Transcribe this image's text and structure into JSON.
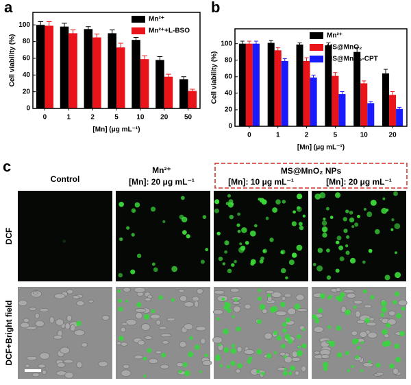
{
  "chart_data": [
    {
      "type": "bar",
      "panel": "a",
      "ylabel": "Cell viability (%)",
      "xlabel": "[Mn]  (μg mL⁻¹)",
      "categories": [
        "0",
        "1",
        "2",
        "5",
        "10",
        "20",
        "50"
      ],
      "series": [
        {
          "name": "Mn²⁺",
          "color": "#000000",
          "values": [
            100,
            98,
            95,
            90,
            82,
            58,
            35
          ],
          "errors": [
            4,
            4,
            3,
            4,
            3,
            4,
            3
          ]
        },
        {
          "name": "Mn²⁺+L-BSO",
          "color": "#e8141a",
          "values": [
            99,
            90,
            85,
            73,
            59,
            38,
            21
          ],
          "errors": [
            5,
            4,
            4,
            5,
            4,
            3,
            2
          ]
        }
      ],
      "ylim": [
        0,
        115
      ],
      "yticks": [
        0,
        20,
        40,
        60,
        80,
        100
      ],
      "legend": "upper right"
    },
    {
      "type": "bar",
      "panel": "b",
      "ylabel": "Cell viability (%)",
      "xlabel": "[Mn]  (μg mL⁻¹)",
      "categories": [
        "0",
        "1",
        "2",
        "5",
        "10",
        "20"
      ],
      "series": [
        {
          "name": "Mn²⁺",
          "color": "#000000",
          "values": [
            100,
            101,
            99,
            98,
            90,
            64
          ],
          "errors": [
            3,
            3,
            2,
            3,
            5,
            5
          ]
        },
        {
          "name": "MS@MnO₂",
          "color": "#e8141a",
          "values": [
            100,
            92,
            79,
            61,
            52,
            38
          ],
          "errors": [
            3,
            3,
            4,
            4,
            3,
            4
          ]
        },
        {
          "name": "MS@MnO₂-CPT",
          "color": "#1a1aff",
          "values": [
            100,
            79,
            59,
            39,
            28,
            21
          ],
          "errors": [
            3,
            3,
            3,
            3,
            2,
            2
          ]
        }
      ],
      "ylim": [
        0,
        118
      ],
      "yticks": [
        0,
        20,
        40,
        60,
        80,
        100
      ],
      "legend": "upper right"
    }
  ],
  "panel_c": {
    "label": "c",
    "columns": [
      {
        "title": "Control"
      },
      {
        "title": "Mn²⁺",
        "subtitle": "[Mn]: 20 μg mL⁻¹"
      },
      {
        "subtitle": "[Mn]: 10 μg mL⁻¹"
      },
      {
        "subtitle": "[Mn]: 20 μg mL⁻¹"
      }
    ],
    "group_title": "MS@MnO₂ NPs",
    "rows": [
      "DCF",
      "DCF+Bright field"
    ]
  }
}
